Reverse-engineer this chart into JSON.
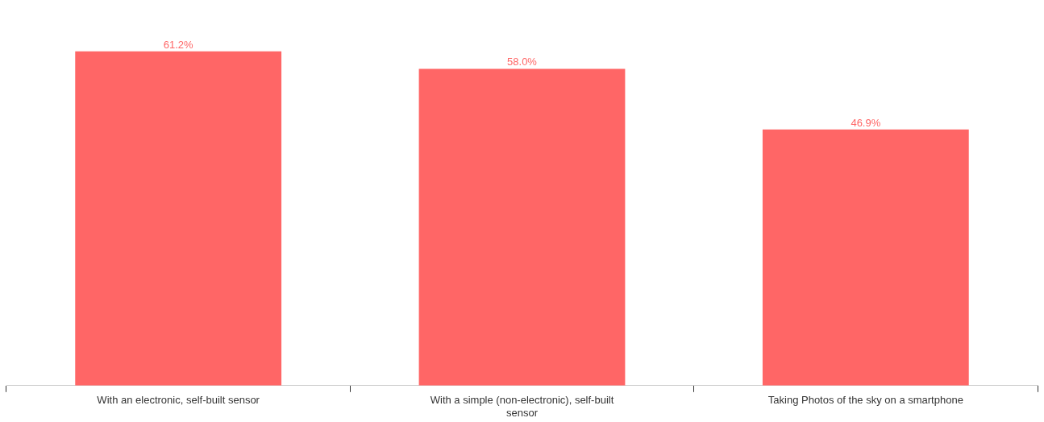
{
  "chart_data": {
    "type": "bar",
    "categories": [
      "With an electronic, self-built sensor",
      "With a simple (non-electronic), self-built sensor",
      "Taking Photos of the sky on a smartphone"
    ],
    "values": [
      61.2,
      58.0,
      46.9
    ],
    "value_labels": [
      "61.2%",
      "58.0%",
      "46.9%"
    ],
    "color": "#ff6666",
    "tick_labels": "x",
    "grid": false,
    "legend": false
  }
}
